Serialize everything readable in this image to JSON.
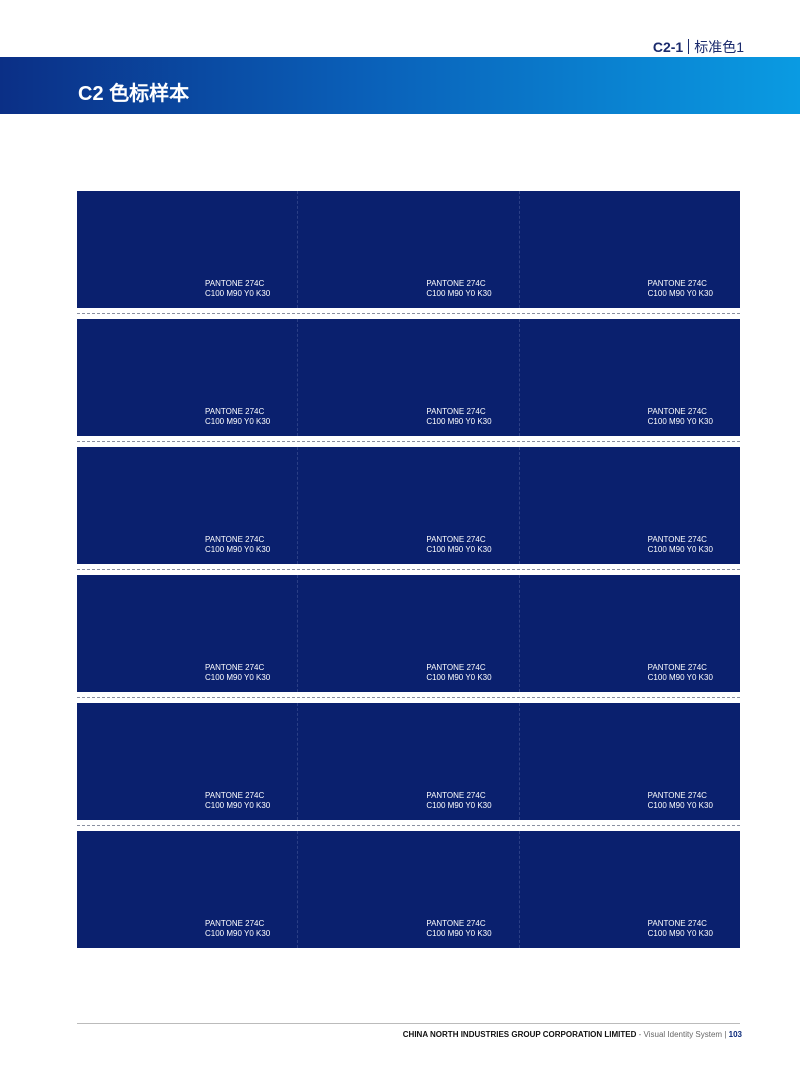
{
  "header": {
    "section_code": "C2-1",
    "section_name": "标准色1",
    "title": "C2 色标样本"
  },
  "swatch": {
    "color": "#0a206e",
    "pantone": "PANTONE 274C",
    "cmyk": "C100 M90 Y0 K30",
    "rows": 6,
    "columns": 3
  },
  "footer": {
    "company": "CHINA NORTH INDUSTRIES GROUP CORPORATION LIMITED",
    "system": "- Visual Identity System",
    "separator": "|",
    "page": "103"
  }
}
